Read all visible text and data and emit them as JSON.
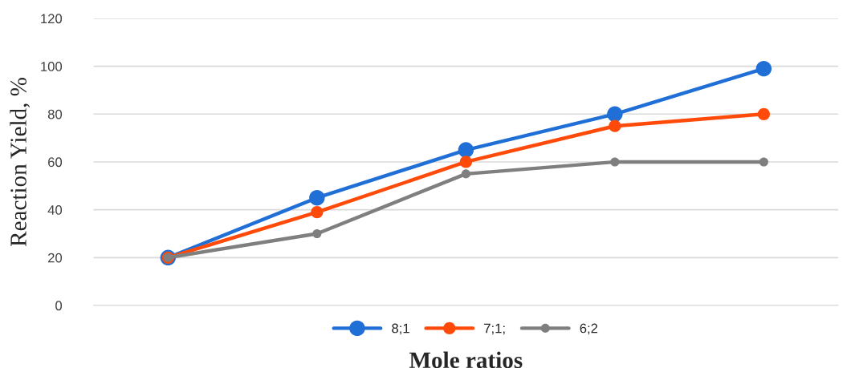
{
  "chart_data": {
    "type": "line",
    "xlabel": "Mole ratios",
    "ylabel": "Reaction Yield, %",
    "categories": [
      null,
      null,
      null,
      null,
      null
    ],
    "series": [
      {
        "name": "8;1",
        "color": "#1f6fd6",
        "values": [
          20,
          45,
          65,
          80,
          99
        ]
      },
      {
        "name": "7;1;",
        "color": "#ff4a0a",
        "values": [
          20,
          39,
          60,
          75,
          80
        ]
      },
      {
        "name": "6;2",
        "color": "#7f7f7f",
        "values": [
          20,
          30,
          55,
          60,
          60
        ]
      }
    ],
    "ylim": [
      0,
      120
    ],
    "yticks": [
      0,
      20,
      40,
      60,
      80,
      100,
      120
    ],
    "grid": "y",
    "legend": "bottom",
    "marker": "circle",
    "line_style": "solid"
  }
}
